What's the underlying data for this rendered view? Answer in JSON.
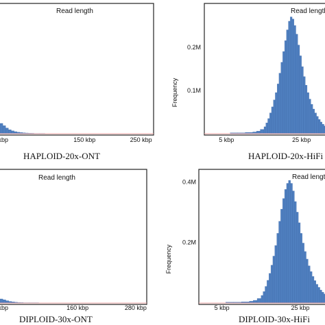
{
  "chart_data": [
    {
      "type": "bar",
      "title": "Read length",
      "caption": "HAPLOID-20x-ONT",
      "xlabel": "",
      "ylabel": "",
      "xunit": "kbp",
      "xlim": [
        0,
        270
      ],
      "ylim": [
        0,
        1
      ],
      "tick_labels": [
        {
          "x": 0,
          "label": "kbp"
        },
        {
          "x": 150,
          "label": "150 kbp"
        },
        {
          "x": 250,
          "label": "250 kbp"
        }
      ],
      "y_tick_labels": [],
      "bins": [
        {
          "x": 0,
          "value": 0.09
        },
        {
          "x": 5,
          "value": 0.07
        },
        {
          "x": 10,
          "value": 0.05
        },
        {
          "x": 15,
          "value": 0.035
        },
        {
          "x": 20,
          "value": 0.025
        },
        {
          "x": 25,
          "value": 0.018
        },
        {
          "x": 30,
          "value": 0.013
        },
        {
          "x": 35,
          "value": 0.01
        },
        {
          "x": 40,
          "value": 0.008
        },
        {
          "x": 45,
          "value": 0.006
        },
        {
          "x": 50,
          "value": 0.005
        },
        {
          "x": 55,
          "value": 0.004
        },
        {
          "x": 60,
          "value": 0.003
        },
        {
          "x": 70,
          "value": 0.003
        },
        {
          "x": 80,
          "value": 0.002
        },
        {
          "x": 90,
          "value": 0.002
        },
        {
          "x": 100,
          "value": 0.002
        },
        {
          "x": 120,
          "value": 0.002
        },
        {
          "x": 140,
          "value": 0.002
        },
        {
          "x": 160,
          "value": 0.002
        }
      ]
    },
    {
      "type": "bar",
      "title": "Read length",
      "caption": "HAPLOID-20x-HiFi",
      "xlabel": "",
      "ylabel": "Frequency",
      "xunit": "kbp",
      "xlim": [
        0,
        32
      ],
      "ylim": [
        0,
        0.29
      ],
      "tick_labels": [
        {
          "x": 5,
          "label": "5 kbp"
        },
        {
          "x": 25,
          "label": "25 kbp"
        }
      ],
      "y_tick_labels": [
        {
          "y": 0.1,
          "label": "0.1M"
        },
        {
          "y": 0.2,
          "label": "0.2M"
        }
      ],
      "bins": [
        {
          "x": 6,
          "value": 0.002
        },
        {
          "x": 8,
          "value": 0.002
        },
        {
          "x": 10,
          "value": 0.003
        },
        {
          "x": 12,
          "value": 0.004
        },
        {
          "x": 13,
          "value": 0.006
        },
        {
          "x": 14,
          "value": 0.01
        },
        {
          "x": 15,
          "value": 0.016
        },
        {
          "x": 15.5,
          "value": 0.025
        },
        {
          "x": 16,
          "value": 0.035
        },
        {
          "x": 16.5,
          "value": 0.048
        },
        {
          "x": 17,
          "value": 0.062
        },
        {
          "x": 17.5,
          "value": 0.078
        },
        {
          "x": 18,
          "value": 0.095
        },
        {
          "x": 18.5,
          "value": 0.115
        },
        {
          "x": 19,
          "value": 0.14
        },
        {
          "x": 19.5,
          "value": 0.165
        },
        {
          "x": 20,
          "value": 0.19
        },
        {
          "x": 20.5,
          "value": 0.215
        },
        {
          "x": 21,
          "value": 0.24
        },
        {
          "x": 21.5,
          "value": 0.26
        },
        {
          "x": 22,
          "value": 0.27
        },
        {
          "x": 22.5,
          "value": 0.265
        },
        {
          "x": 23,
          "value": 0.25
        },
        {
          "x": 23.5,
          "value": 0.23
        },
        {
          "x": 24,
          "value": 0.205
        },
        {
          "x": 24.5,
          "value": 0.18
        },
        {
          "x": 25,
          "value": 0.155
        },
        {
          "x": 25.5,
          "value": 0.132
        },
        {
          "x": 26,
          "value": 0.112
        },
        {
          "x": 26.5,
          "value": 0.095
        },
        {
          "x": 27,
          "value": 0.08
        },
        {
          "x": 27.5,
          "value": 0.068
        },
        {
          "x": 28,
          "value": 0.057
        },
        {
          "x": 28.5,
          "value": 0.048
        },
        {
          "x": 29,
          "value": 0.04
        },
        {
          "x": 29.5,
          "value": 0.033
        },
        {
          "x": 30,
          "value": 0.027
        },
        {
          "x": 30.5,
          "value": 0.022
        },
        {
          "x": 31,
          "value": 0.018
        },
        {
          "x": 31.5,
          "value": 0.015
        }
      ]
    },
    {
      "type": "bar",
      "title": "Read length",
      "caption": "DIPLOID-30x-ONT",
      "xlabel": "",
      "ylabel": "",
      "xunit": "kbp",
      "xlim": [
        0,
        300
      ],
      "ylim": [
        0,
        1
      ],
      "tick_labels": [
        {
          "x": 0,
          "label": "kbp"
        },
        {
          "x": 160,
          "label": "160 kbp"
        },
        {
          "x": 280,
          "label": "280 kbp"
        }
      ],
      "y_tick_labels": [],
      "bins": [
        {
          "x": 0,
          "value": 0.035
        },
        {
          "x": 6,
          "value": 0.028
        },
        {
          "x": 12,
          "value": 0.02
        },
        {
          "x": 18,
          "value": 0.014
        },
        {
          "x": 24,
          "value": 0.01
        },
        {
          "x": 30,
          "value": 0.007
        },
        {
          "x": 36,
          "value": 0.005
        },
        {
          "x": 42,
          "value": 0.004
        },
        {
          "x": 48,
          "value": 0.003
        },
        {
          "x": 60,
          "value": 0.003
        },
        {
          "x": 80,
          "value": 0.002
        },
        {
          "x": 100,
          "value": 0.002
        },
        {
          "x": 130,
          "value": 0.002
        },
        {
          "x": 160,
          "value": 0.002
        }
      ]
    },
    {
      "type": "bar",
      "title": "Read length",
      "caption": "DIPLOID-30x-HiFi",
      "xlabel": "",
      "ylabel": "Frequency",
      "xunit": "kbp",
      "xlim": [
        0,
        32
      ],
      "ylim": [
        0,
        0.43
      ],
      "tick_labels": [
        {
          "x": 5,
          "label": "5 kbp"
        },
        {
          "x": 25,
          "label": "25 kbp"
        }
      ],
      "y_tick_labels": [
        {
          "y": 0.2,
          "label": "0.2M"
        },
        {
          "y": 0.4,
          "label": "0.4M"
        }
      ],
      "bins": [
        {
          "x": 6,
          "value": 0.003
        },
        {
          "x": 8,
          "value": 0.003
        },
        {
          "x": 10,
          "value": 0.004
        },
        {
          "x": 12,
          "value": 0.006
        },
        {
          "x": 13,
          "value": 0.009
        },
        {
          "x": 14,
          "value": 0.015
        },
        {
          "x": 15,
          "value": 0.025
        },
        {
          "x": 15.5,
          "value": 0.038
        },
        {
          "x": 16,
          "value": 0.055
        },
        {
          "x": 16.5,
          "value": 0.075
        },
        {
          "x": 17,
          "value": 0.098
        },
        {
          "x": 17.5,
          "value": 0.125
        },
        {
          "x": 18,
          "value": 0.155
        },
        {
          "x": 18.5,
          "value": 0.19
        },
        {
          "x": 19,
          "value": 0.23
        },
        {
          "x": 19.5,
          "value": 0.27
        },
        {
          "x": 20,
          "value": 0.31
        },
        {
          "x": 20.5,
          "value": 0.345
        },
        {
          "x": 21,
          "value": 0.375
        },
        {
          "x": 21.5,
          "value": 0.395
        },
        {
          "x": 22,
          "value": 0.405
        },
        {
          "x": 22.5,
          "value": 0.395
        },
        {
          "x": 23,
          "value": 0.37
        },
        {
          "x": 23.5,
          "value": 0.335
        },
        {
          "x": 24,
          "value": 0.3
        },
        {
          "x": 24.5,
          "value": 0.265
        },
        {
          "x": 25,
          "value": 0.23
        },
        {
          "x": 25.5,
          "value": 0.198
        },
        {
          "x": 26,
          "value": 0.17
        },
        {
          "x": 26.5,
          "value": 0.145
        },
        {
          "x": 27,
          "value": 0.123
        },
        {
          "x": 27.5,
          "value": 0.104
        },
        {
          "x": 28,
          "value": 0.088
        },
        {
          "x": 28.5,
          "value": 0.074
        },
        {
          "x": 29,
          "value": 0.062
        },
        {
          "x": 29.5,
          "value": 0.052
        },
        {
          "x": 30,
          "value": 0.043
        },
        {
          "x": 30.5,
          "value": 0.036
        },
        {
          "x": 31,
          "value": 0.03
        },
        {
          "x": 31.5,
          "value": 0.025
        }
      ]
    }
  ],
  "colors": {
    "bar_fill": "#4f7fbf",
    "bar_edge": "#3a66a8",
    "frame": "#222222",
    "baseline": "#e8a0a0"
  }
}
